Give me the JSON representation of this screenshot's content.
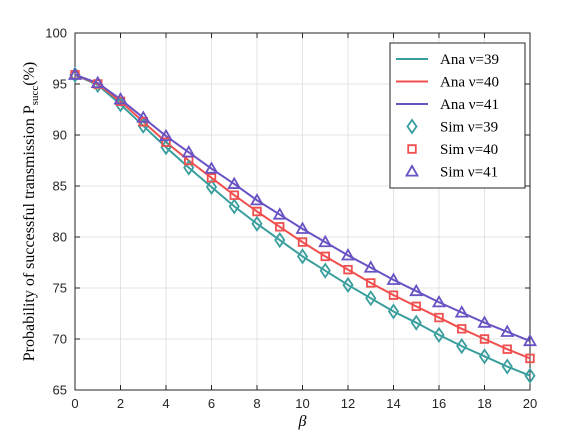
{
  "chart_data": {
    "type": "line",
    "xlabel": "β",
    "ylabel": "Probability of successful transmission P",
    "ylabel_subscript": "succ",
    "ylabel_unit": "(%)",
    "xlim": [
      0,
      20
    ],
    "ylim": [
      65,
      100
    ],
    "xticks": [
      0,
      2,
      4,
      6,
      8,
      10,
      12,
      14,
      16,
      18,
      20
    ],
    "yticks": [
      65,
      70,
      75,
      80,
      85,
      90,
      95,
      100
    ],
    "grid": true,
    "legend_position": "top-right",
    "x": [
      0,
      1,
      2,
      3,
      4,
      5,
      6,
      7,
      8,
      9,
      10,
      11,
      12,
      13,
      14,
      15,
      16,
      17,
      18,
      19,
      20
    ],
    "series": [
      {
        "name": "Ana ν=39",
        "kind": "line",
        "color": "#3a9e9e",
        "values": [
          95.9,
          94.9,
          93.0,
          90.9,
          88.8,
          86.8,
          84.9,
          83.0,
          81.3,
          79.7,
          78.1,
          76.7,
          75.3,
          74.0,
          72.7,
          71.6,
          70.4,
          69.3,
          68.3,
          67.3,
          66.4
        ]
      },
      {
        "name": "Ana ν=40",
        "kind": "line",
        "color": "#f04f4f",
        "values": [
          95.9,
          95.0,
          93.3,
          91.3,
          89.3,
          87.5,
          85.8,
          84.1,
          82.5,
          81.0,
          79.5,
          78.1,
          76.8,
          75.5,
          74.3,
          73.2,
          72.1,
          71.0,
          70.0,
          69.0,
          68.1
        ]
      },
      {
        "name": "Ana ν=41",
        "kind": "line",
        "color": "#6a52c4",
        "values": [
          95.9,
          95.1,
          93.5,
          91.7,
          89.9,
          88.3,
          86.7,
          85.2,
          83.6,
          82.2,
          80.8,
          79.5,
          78.2,
          77.0,
          75.8,
          74.7,
          73.6,
          72.6,
          71.6,
          70.7,
          69.8
        ]
      },
      {
        "name": "Sim ν=39",
        "kind": "marker",
        "marker": "diamond",
        "color": "#3a9e9e",
        "values": [
          95.9,
          94.9,
          93.0,
          90.9,
          88.8,
          86.8,
          84.9,
          83.0,
          81.3,
          79.7,
          78.1,
          76.7,
          75.3,
          74.0,
          72.7,
          71.6,
          70.4,
          69.3,
          68.3,
          67.3,
          66.4
        ]
      },
      {
        "name": "Sim ν=40",
        "kind": "marker",
        "marker": "square",
        "color": "#f04f4f",
        "values": [
          95.9,
          95.0,
          93.3,
          91.3,
          89.3,
          87.5,
          85.8,
          84.1,
          82.5,
          81.0,
          79.5,
          78.1,
          76.8,
          75.5,
          74.3,
          73.2,
          72.1,
          71.0,
          70.0,
          69.0,
          68.1
        ]
      },
      {
        "name": "Sim ν=41",
        "kind": "marker",
        "marker": "triangle",
        "color": "#6a52c4",
        "values": [
          95.9,
          95.1,
          93.5,
          91.7,
          89.9,
          88.3,
          86.7,
          85.2,
          83.6,
          82.2,
          80.8,
          79.5,
          78.2,
          77.0,
          75.8,
          74.7,
          73.6,
          72.6,
          71.6,
          70.7,
          69.8
        ]
      }
    ]
  }
}
